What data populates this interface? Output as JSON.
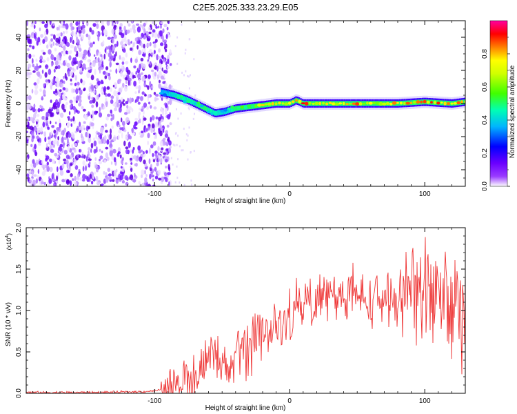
{
  "figure_title": "C2E5.2025.333.23.29.E05",
  "chart_data": [
    {
      "type": "heatmap",
      "title": "C2E5.2025.333.23.29.E05",
      "xlabel": "Height of straight line (km)",
      "ylabel": "Frequency (Hz)",
      "xlim": [
        -195,
        130
      ],
      "ylim": [
        -50,
        50
      ],
      "x_ticks": [
        -100,
        0,
        100
      ],
      "y_ticks": [
        -40,
        -20,
        0,
        20,
        40
      ],
      "x_tick_labels": [
        "-100",
        "0",
        "100"
      ],
      "y_tick_labels": [
        "-40",
        "-20",
        "0",
        "20",
        "40"
      ],
      "colorbar": {
        "label": "Normalized spectral amplitude",
        "range": [
          0,
          1
        ],
        "ticks": [
          0.0,
          0.2,
          0.4,
          0.6,
          0.8
        ],
        "tick_labels": [
          "0.0",
          "0.2",
          "0.4",
          "0.6",
          "0.8"
        ],
        "colormap": [
          "#ffffff",
          "#8000ff",
          "#0000ff",
          "#00c8ff",
          "#00ff80",
          "#80ff00",
          "#ffff00",
          "#ff8000",
          "#ff0000",
          "#ff00a0"
        ]
      },
      "noise_region_x": [
        -195,
        -88
      ],
      "signal_track": {
        "x": [
          -95,
          -85,
          -75,
          -65,
          -55,
          -48,
          -40,
          -30,
          -20,
          -10,
          0,
          5,
          10,
          20,
          40,
          60,
          80,
          100,
          120,
          130
        ],
        "frequency": [
          7,
          5,
          2,
          -2,
          -6,
          -5,
          -3,
          -2,
          -1,
          0,
          0,
          2,
          0,
          0,
          0,
          0,
          0,
          1,
          0,
          1
        ],
        "amplitude": [
          0.35,
          0.45,
          0.45,
          0.5,
          0.45,
          0.4,
          0.5,
          0.6,
          0.75,
          0.8,
          0.85,
          0.9,
          0.85,
          0.85,
          0.85,
          0.8,
          0.8,
          0.85,
          0.85,
          0.8
        ]
      }
    },
    {
      "type": "line",
      "xlabel": "Height of straight line (km)",
      "ylabel": "SNR (10 * v/v)",
      "y_multiplier": "(x10",
      "y_multiplier_exp": "4",
      "xlim": [
        -195,
        130
      ],
      "ylim": [
        0,
        2.0
      ],
      "x_ticks": [
        -100,
        0,
        100
      ],
      "y_ticks": [
        0.0,
        0.5,
        1.0,
        1.5,
        2.0
      ],
      "x_tick_labels": [
        "-100",
        "0",
        "100"
      ],
      "y_tick_labels": [
        "0.0",
        "0.5",
        "1.0",
        "1.5",
        "2.0"
      ],
      "line_color": "#ee3333",
      "series": [
        {
          "name": "SNR",
          "x": [
            -195,
            -170,
            -140,
            -110,
            -100,
            -90,
            -80,
            -70,
            -60,
            -55,
            -50,
            -45,
            -40,
            -35,
            -30,
            -25,
            -20,
            -10,
            0,
            10,
            20,
            30,
            40,
            50,
            60,
            70,
            80,
            90,
            100,
            110,
            120,
            125,
            130
          ],
          "y": [
            0.01,
            0.01,
            0.01,
            0.02,
            0.03,
            0.05,
            0.15,
            0.25,
            0.35,
            0.45,
            0.3,
            0.2,
            0.55,
            0.6,
            0.45,
            0.65,
            0.75,
            0.8,
            0.9,
            1.05,
            1.15,
            1.2,
            1.18,
            1.15,
            1.12,
            1.15,
            1.15,
            1.2,
            1.2,
            1.25,
            1.1,
            1.0,
            1.05
          ]
        }
      ]
    }
  ]
}
